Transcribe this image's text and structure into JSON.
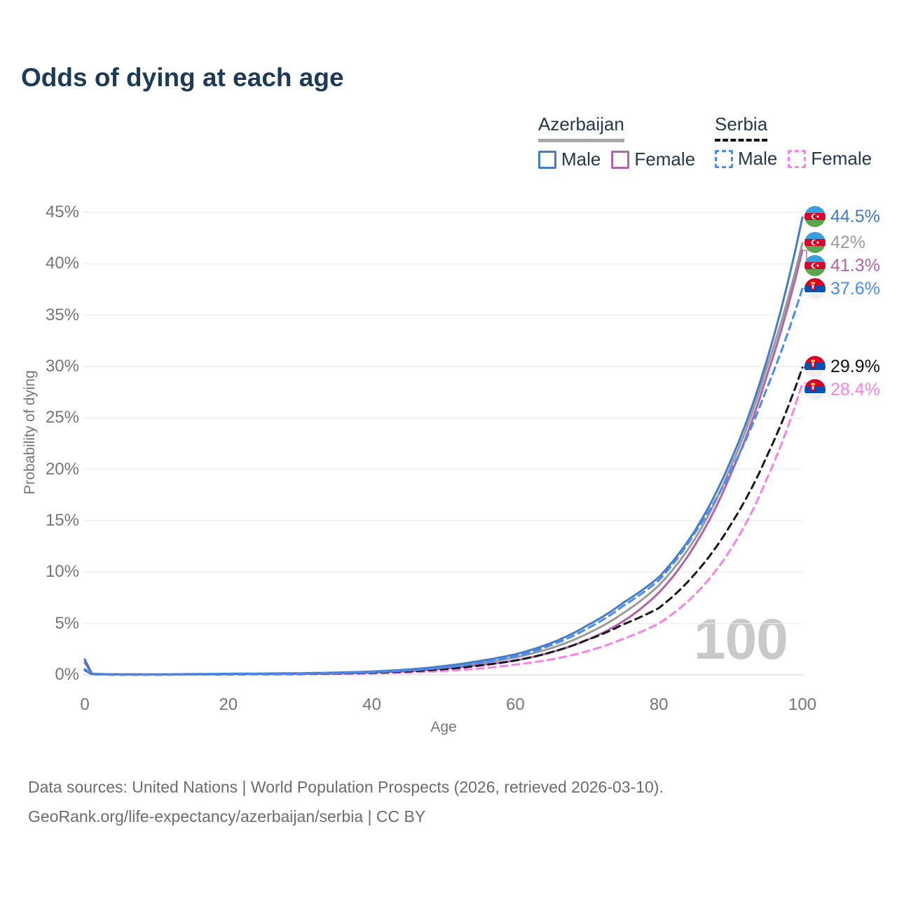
{
  "title": "Odds of dying at each age",
  "watermark": "100",
  "legend": {
    "groups": [
      {
        "country": "Azerbaijan",
        "line_style": "solid",
        "underline_color": "#a8a8a8",
        "items": [
          {
            "label": "Male",
            "color": "#447dc4"
          },
          {
            "label": "Female",
            "color": "#b163ac"
          }
        ]
      },
      {
        "country": "Serbia",
        "line_style": "dashed",
        "underline_color": "#151515",
        "items": [
          {
            "label": "Male",
            "color": "#4a8af4"
          },
          {
            "label": "Female",
            "color": "#fb80e8"
          }
        ]
      }
    ]
  },
  "chart_data": {
    "type": "line",
    "title": "Odds of dying at each age",
    "xlabel": "Age",
    "ylabel": "Probability of dying",
    "xlim": [
      0,
      100
    ],
    "ylim": [
      0,
      45
    ],
    "xticks": [
      0,
      20,
      40,
      60,
      80,
      100
    ],
    "yticks": [
      0,
      5,
      10,
      15,
      20,
      25,
      30,
      35,
      40,
      45
    ],
    "ytick_suffix": "%",
    "grid": true,
    "legend_position": "top-right",
    "x": [
      0,
      1,
      5,
      10,
      15,
      20,
      25,
      30,
      35,
      40,
      45,
      50,
      55,
      60,
      65,
      70,
      75,
      80,
      85,
      90,
      95,
      100
    ],
    "series": [
      {
        "name": "Azerbaijan Male",
        "color": "#447dc4",
        "dash": "solid",
        "flag": "azerbaijan-flag-icon",
        "end_label": "44.5%",
        "label_color": "#447dc4",
        "values": [
          1.5,
          0.1,
          0.05,
          0.05,
          0.08,
          0.11,
          0.13,
          0.16,
          0.22,
          0.32,
          0.52,
          0.85,
          1.35,
          2.0,
          3.1,
          4.8,
          7.0,
          9.5,
          14.0,
          20.8,
          30.5,
          44.5
        ]
      },
      {
        "name": "Azerbaijan",
        "color": "#9b9b9b",
        "dash": "solid",
        "flag": "azerbaijan-flag-icon",
        "end_label": "42%",
        "label_color": "#9b9b9b",
        "values": [
          1.35,
          0.09,
          0.05,
          0.04,
          0.06,
          0.09,
          0.11,
          0.13,
          0.18,
          0.27,
          0.44,
          0.72,
          1.15,
          1.7,
          2.6,
          4.0,
          6.0,
          8.7,
          13.2,
          20.2,
          29.8,
          42.0
        ]
      },
      {
        "name": "Azerbaijan Female",
        "color": "#b163ac",
        "dash": "solid",
        "flag": "azerbaijan-flag-icon",
        "end_label": "41.3%",
        "label_color": "#b163ac",
        "values": [
          1.2,
          0.08,
          0.04,
          0.04,
          0.05,
          0.07,
          0.08,
          0.1,
          0.14,
          0.22,
          0.36,
          0.6,
          0.95,
          1.4,
          2.2,
          3.4,
          5.2,
          8.0,
          12.6,
          19.5,
          29.0,
          41.3
        ]
      },
      {
        "name": "Serbia Male",
        "color": "#4a8af4",
        "dash": "dashed",
        "flag": "serbia-flag-icon",
        "end_label": "37.6%",
        "label_color": "#4a8af4",
        "values": [
          0.55,
          0.05,
          0.02,
          0.02,
          0.05,
          0.08,
          0.09,
          0.11,
          0.16,
          0.25,
          0.42,
          0.7,
          1.15,
          1.8,
          2.9,
          4.5,
          6.7,
          9.2,
          13.8,
          19.8,
          27.8,
          37.6
        ]
      },
      {
        "name": "Serbia",
        "color": "#1a1a1a",
        "dash": "dashed",
        "flag": "serbia-flag-icon",
        "end_label": "29.9%",
        "label_color": "#111111",
        "values": [
          0.5,
          0.04,
          0.02,
          0.02,
          0.04,
          0.06,
          0.07,
          0.09,
          0.13,
          0.2,
          0.33,
          0.55,
          0.9,
          1.4,
          2.2,
          3.4,
          4.9,
          6.5,
          9.8,
          14.6,
          21.2,
          29.9
        ]
      },
      {
        "name": "Serbia Female",
        "color": "#fb80e8",
        "dash": "dashed",
        "flag": "serbia-flag-icon",
        "end_label": "28.4%",
        "label_color": "#fb80e8",
        "values": [
          0.45,
          0.04,
          0.02,
          0.01,
          0.03,
          0.04,
          0.05,
          0.06,
          0.09,
          0.14,
          0.23,
          0.38,
          0.62,
          1.0,
          1.5,
          2.3,
          3.5,
          5.0,
          7.8,
          12.2,
          19.0,
          28.4
        ]
      }
    ]
  },
  "footer": {
    "line1": "Data sources: United Nations | World Population Prospects (2026, retrieved 2026-03-10).",
    "line2": "GeoRank.org/life-expectancy/azerbaijan/serbia | CC BY"
  }
}
